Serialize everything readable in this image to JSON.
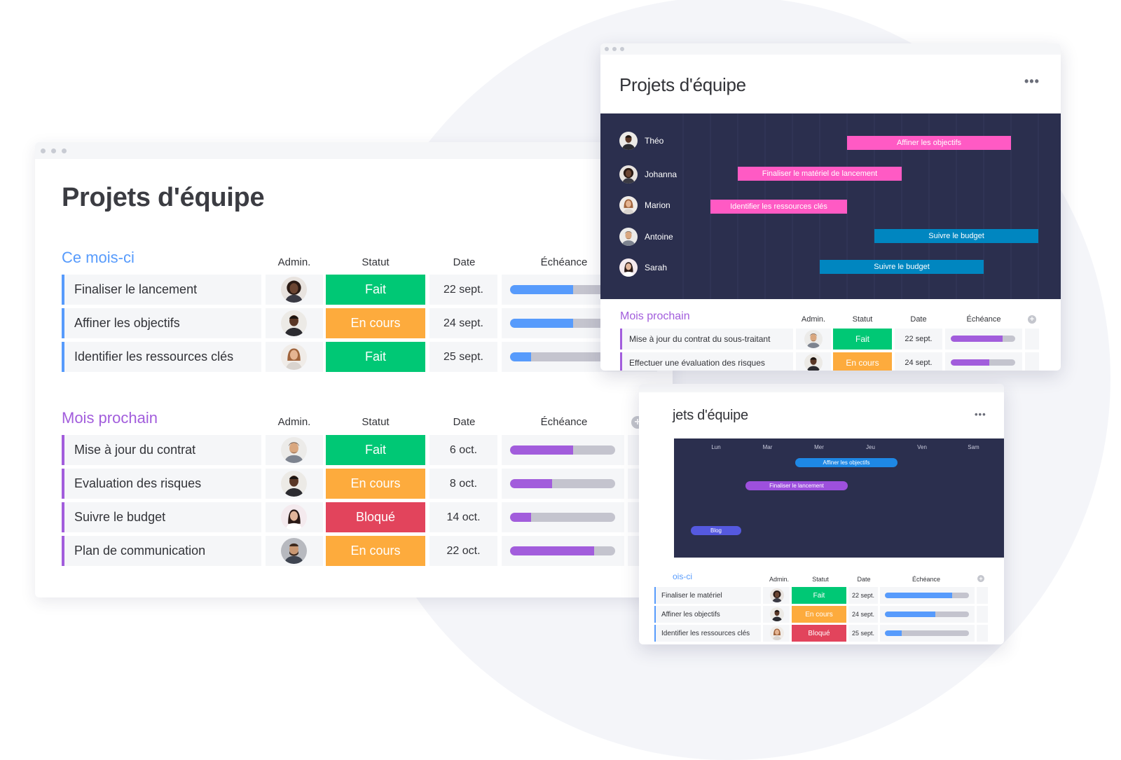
{
  "colors": {
    "done": "#00c875",
    "working": "#fdab3d",
    "stuck": "#e2445c",
    "blue_group": "#579bfc",
    "purple_group": "#a25ddc",
    "gantt_bg": "#2b2f4e",
    "gantt_pink": "#ff5ac4",
    "gantt_blue": "#0086c0",
    "calendar_pill_blue": "#1e88e5",
    "calendar_pill_purple": "#9d50dd"
  },
  "main_board": {
    "title": "Projets d'équipe",
    "columns": {
      "admin": "Admin.",
      "status": "Statut",
      "date": "Date",
      "deadline": "Échéance"
    },
    "groups": [
      {
        "title": "Ce mois-ci",
        "color": "#579bfc",
        "rows": [
          {
            "name": "Finaliser le lancement",
            "status": "Fait",
            "status_color": "#00c875",
            "date": "22 sept.",
            "progress": 0.6,
            "avatar": "avatar-woman-1"
          },
          {
            "name": "Affiner les objectifs",
            "status": "En cours",
            "status_color": "#fdab3d",
            "date": "24 sept.",
            "progress": 0.6,
            "avatar": "avatar-man-1"
          },
          {
            "name": "Identifier les ressources clés",
            "status": "Fait",
            "status_color": "#00c875",
            "date": "25 sept.",
            "progress": 0.2,
            "avatar": "avatar-woman-2"
          }
        ]
      },
      {
        "title": "Mois prochain",
        "color": "#a25ddc",
        "rows": [
          {
            "name": "Mise à jour du contrat",
            "status": "Fait",
            "status_color": "#00c875",
            "date": "6 oct.",
            "progress": 0.6,
            "avatar": "avatar-man-2"
          },
          {
            "name": "Evaluation des risques",
            "status": "En cours",
            "status_color": "#fdab3d",
            "date": "8 oct.",
            "progress": 0.4,
            "avatar": "avatar-man-1"
          },
          {
            "name": "Suivre le budget",
            "status": "Bloqué",
            "status_color": "#e2445c",
            "date": "14 oct.",
            "progress": 0.2,
            "avatar": "avatar-woman-3"
          },
          {
            "name": "Plan de communication",
            "status": "En cours",
            "status_color": "#fdab3d",
            "date": "22 oct.",
            "progress": 0.8,
            "avatar": "avatar-man-3"
          }
        ]
      }
    ]
  },
  "gantt_board": {
    "title": "Projets d'équipe",
    "more_icon": "more-horizontal-icon",
    "people": [
      {
        "name": "Théo",
        "task": "Affiner les objectifs",
        "color": "#ff5ac4"
      },
      {
        "name": "Johanna",
        "task": "Finaliser le matériel de lancement",
        "color": "#ff5ac4"
      },
      {
        "name": "Marion",
        "task": "Identifier les ressources clés",
        "color": "#ff5ac4"
      },
      {
        "name": "Antoine",
        "task": "Suivre le budget",
        "color": "#0086c0"
      },
      {
        "name": "Sarah",
        "task": "Suivre le budget",
        "color": "#0086c0"
      }
    ],
    "group": {
      "title": "Mois prochain",
      "columns": {
        "admin": "Admin.",
        "status": "Statut",
        "date": "Date",
        "deadline": "Échéance"
      },
      "rows": [
        {
          "name": "Mise à jour du contrat du sous-traitant",
          "status": "Fait",
          "status_color": "#00c875",
          "date": "22 sept.",
          "progress": 0.8
        },
        {
          "name": "Effectuer une évaluation des risques",
          "status": "En cours",
          "status_color": "#fdab3d",
          "date": "24 sept.",
          "progress": 0.6
        }
      ]
    }
  },
  "calendar_board": {
    "title_visible": "jets d'équipe",
    "more_icon": "more-horizontal-icon",
    "days": [
      "Lun",
      "Mar",
      "Mer",
      "Jeu",
      "Ven",
      "Sam"
    ],
    "events": [
      {
        "label": "Affiner les objectifs",
        "color": "#1e88e5"
      },
      {
        "label": "Finaliser le lancement",
        "color": "#9d50dd"
      },
      {
        "label": "Blog",
        "color": "#5559df"
      }
    ],
    "group": {
      "title_visible": "ois-ci",
      "columns": {
        "admin": "Admin.",
        "status": "Statut",
        "date": "Date",
        "deadline": "Échéance"
      },
      "rows": [
        {
          "name": "Finaliser le matériel",
          "status": "Fait",
          "status_color": "#00c875",
          "date": "22 sept.",
          "progress": 0.8
        },
        {
          "name": "Affiner les objectifs",
          "status": "En cours",
          "status_color": "#fdab3d",
          "date": "24 sept.",
          "progress": 0.6
        },
        {
          "name": "Identifier les ressources clés",
          "status": "Bloqué",
          "status_color": "#e2445c",
          "date": "25 sept.",
          "progress": 0.2
        }
      ]
    }
  }
}
